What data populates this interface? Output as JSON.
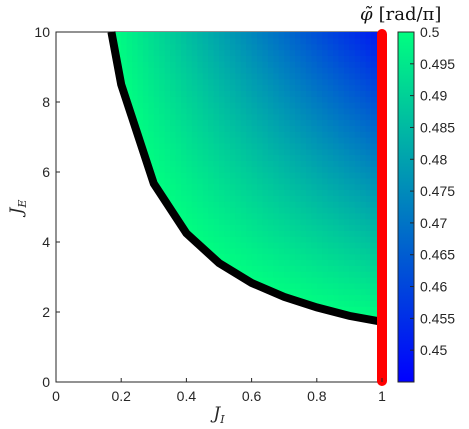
{
  "chart_data": {
    "type": "heatmap",
    "title": "",
    "xlabel": "J",
    "xlabel_sub": "I",
    "ylabel": "J",
    "ylabel_sub": "E",
    "xlim": [
      0,
      1
    ],
    "ylim": [
      0,
      10
    ],
    "xticks": [
      "0",
      "0.2",
      "0.4",
      "0.6",
      "0.8",
      "1"
    ],
    "yticks": [
      "0",
      "2",
      "4",
      "6",
      "8",
      "10"
    ],
    "colorbar": {
      "label_symbol": "φ̃",
      "label_units": "[rad/π]",
      "range": [
        0.445,
        0.5
      ],
      "ticks": [
        "0.45",
        "0.455",
        "0.46",
        "0.465",
        "0.47",
        "0.475",
        "0.48",
        "0.485",
        "0.49",
        "0.495",
        "0.5"
      ],
      "colors": [
        "#0000ff",
        "#00ff80"
      ]
    },
    "boundary_curve": {
      "color": "#000000",
      "points": [
        [
          0.17,
          10
        ],
        [
          0.2,
          8.5
        ],
        [
          0.3,
          5.67
        ],
        [
          0.4,
          4.25
        ],
        [
          0.5,
          3.4
        ],
        [
          0.6,
          2.83
        ],
        [
          0.7,
          2.43
        ],
        [
          0.8,
          2.13
        ],
        [
          0.9,
          1.89
        ],
        [
          1.0,
          1.72
        ]
      ]
    },
    "vertical_line": {
      "x": 1.0,
      "color": "#ff0000"
    },
    "grid": false
  }
}
